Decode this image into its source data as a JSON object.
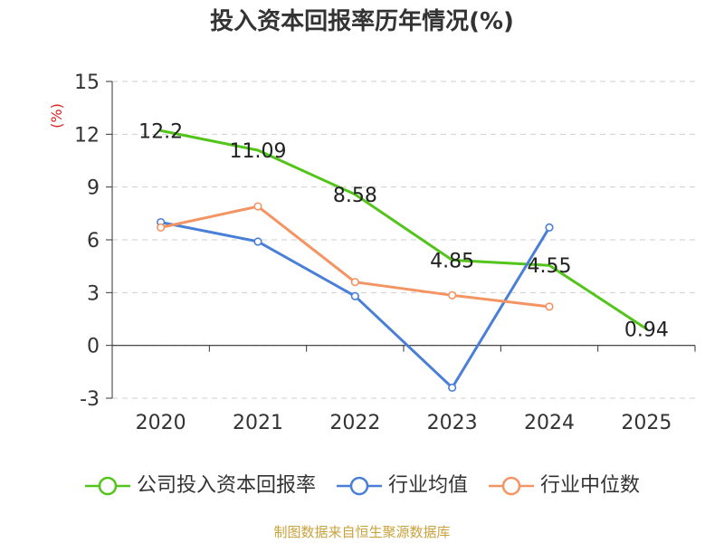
{
  "chart_data": {
    "type": "line",
    "title": "投入资本回报率历年情况(%)",
    "ylabel": "(%)",
    "xlabel": "",
    "categories": [
      "2020",
      "2021",
      "2022",
      "2023",
      "2024",
      "2025"
    ],
    "y_ticks": [
      "15",
      "12",
      "9",
      "6",
      "3",
      "0",
      "-3"
    ],
    "ylim": [
      -3,
      15
    ],
    "grid": true,
    "legend_position": "bottom",
    "series": [
      {
        "name": "公司投入资本回报率",
        "color": "#52c41a",
        "values": [
          12.2,
          11.09,
          8.58,
          4.85,
          4.55,
          0.94
        ],
        "data_labels": [
          "12.2",
          "11.09",
          "8.58",
          "4.85",
          "4.55",
          "0.94"
        ],
        "show_markers": false
      },
      {
        "name": "行业均值",
        "color": "#4a7fd8",
        "values": [
          7.0,
          5.9,
          2.8,
          -2.4,
          6.7,
          null
        ],
        "show_markers": true
      },
      {
        "name": "行业中位数",
        "color": "#f59463",
        "values": [
          6.7,
          7.9,
          3.6,
          2.85,
          2.2,
          null
        ],
        "show_markers": true
      }
    ]
  },
  "source_note": "制图数据来自恒生聚源数据库"
}
